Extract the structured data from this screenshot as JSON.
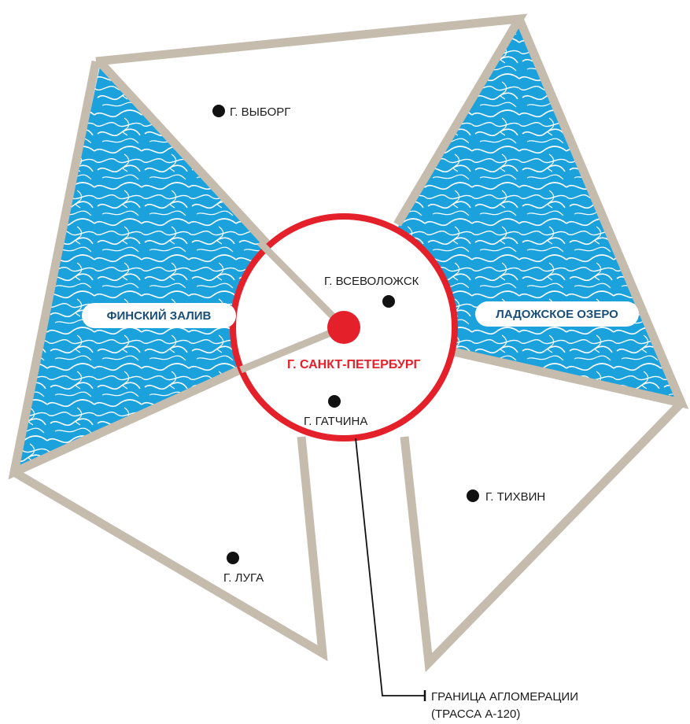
{
  "colors": {
    "border": "#c5bcae",
    "water": "#1ba1dc",
    "water_pattern": "#ffffff",
    "ring": "#e4212b",
    "city_dot": "#111111",
    "center_dot": "#e4212b",
    "text": "#1b1b1b",
    "water_label": "#1a4f7a"
  },
  "cities": {
    "vyborg": "Г. ВЫБОРГ",
    "vsevolozhsk": "Г. ВСЕВОЛОЖСК",
    "spb": "Г. САНКТ-ПЕТЕРБУРГ",
    "gatchina": "Г. ГАТЧИНА",
    "tikhvin": "Г. ТИХВИН",
    "luga": "Г. ЛУГА"
  },
  "water_bodies": {
    "finnish_gulf": "ФИНСКИЙ ЗАЛИВ",
    "ladoga": "ЛАДОЖСКОЕ ОЗЕРО"
  },
  "legend": {
    "line1": "ГРАНИЦА АГЛОМЕРАЦИИ",
    "line2": "(ТРАССА А-120)"
  }
}
